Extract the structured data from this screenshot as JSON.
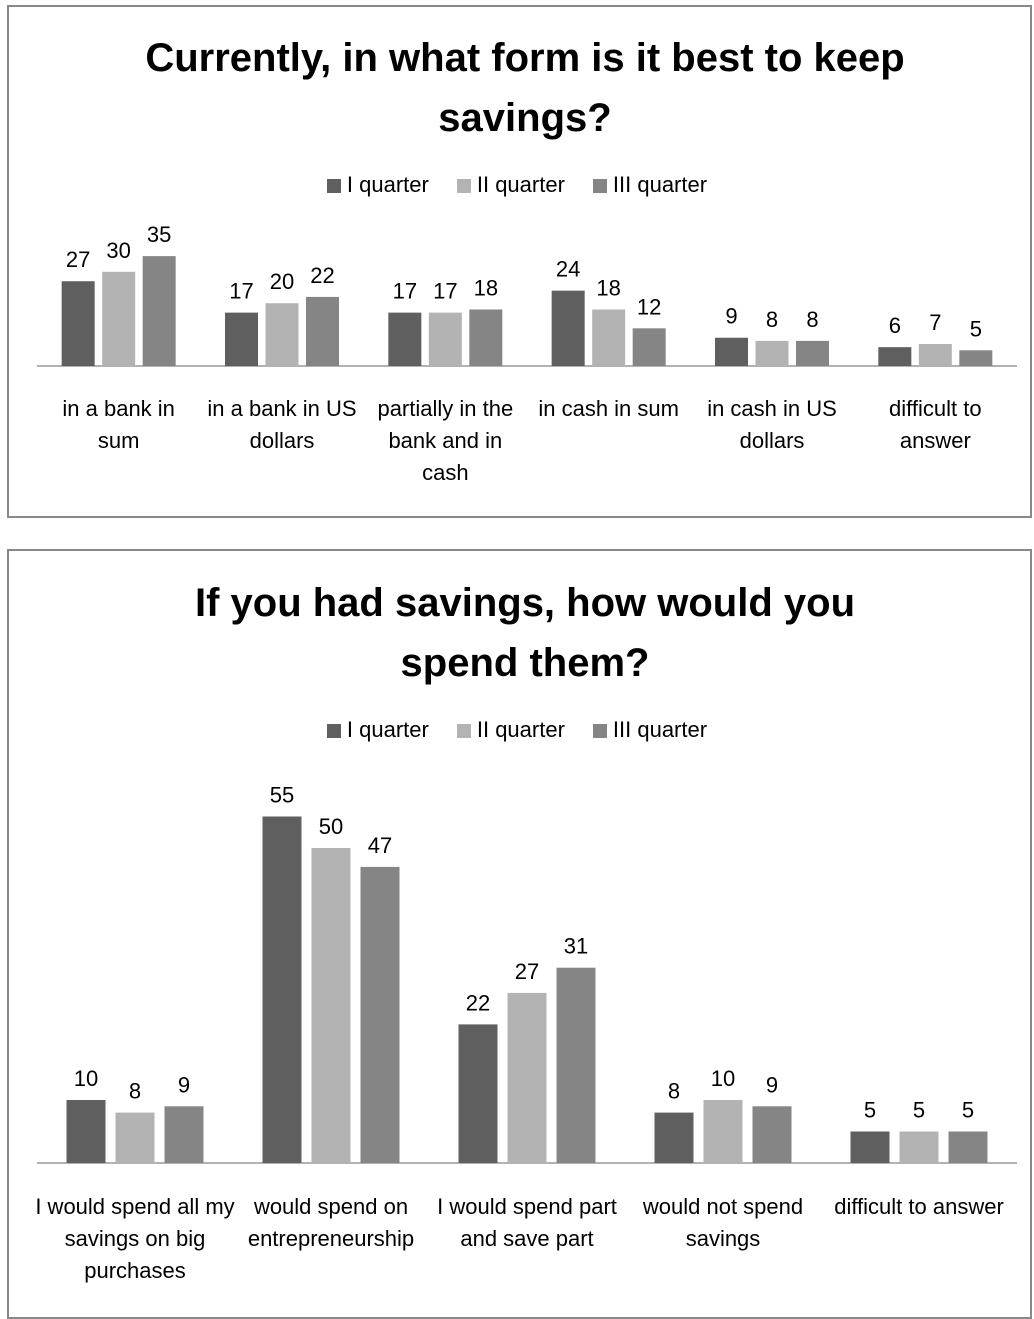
{
  "chart_data": [
    {
      "type": "bar",
      "title": "Currently, in what form is it best to keep savings?",
      "categories": [
        "in a bank in sum",
        "in a bank in US dollars",
        "partially in the bank and in cash",
        "in cash in sum",
        "in cash in US dollars",
        "difficult to answer"
      ],
      "series": [
        {
          "name": "I quarter",
          "color": "#5f5f5f",
          "values": [
            27,
            17,
            17,
            24,
            9,
            6
          ]
        },
        {
          "name": "II quarter",
          "color": "#b3b3b3",
          "values": [
            30,
            20,
            17,
            18,
            8,
            7
          ]
        },
        {
          "name": "III quarter",
          "color": "#858585",
          "values": [
            35,
            22,
            18,
            12,
            8,
            5
          ]
        }
      ],
      "legend": "top"
    },
    {
      "type": "bar",
      "title": "If you had savings, how would you spend them?",
      "categories": [
        "I would spend all my savings on big purchases",
        "would spend on entrepreneurship",
        "I would spend part and save part",
        "would not spend savings",
        "difficult to answer"
      ],
      "series": [
        {
          "name": "I quarter",
          "color": "#5f5f5f",
          "values": [
            10,
            55,
            22,
            8,
            5
          ]
        },
        {
          "name": "II quarter",
          "color": "#b3b3b3",
          "values": [
            8,
            50,
            27,
            10,
            5
          ]
        },
        {
          "name": "III quarter",
          "color": "#858585",
          "values": [
            9,
            47,
            31,
            9,
            5
          ]
        }
      ],
      "legend": "top"
    }
  ]
}
